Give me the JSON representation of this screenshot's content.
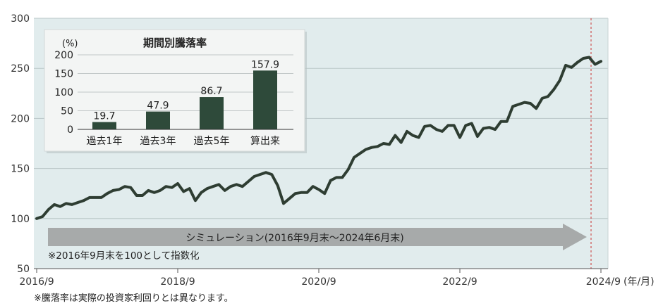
{
  "chart_data": [
    {
      "type": "line",
      "x_tick_labels": [
        "2016/9",
        "2018/9",
        "2020/9",
        "2022/9",
        "2024/9"
      ],
      "x_unit_label": "(年/月)",
      "y_tick_labels": [
        "300",
        "250",
        "200",
        "150",
        "100",
        "50"
      ],
      "ylim": [
        50,
        300
      ],
      "grid": true,
      "colors": {
        "line": "#2e3d32",
        "plot_bg": "#e1eced",
        "arrow": "#a7aaaa",
        "marker_line": "#cc3333"
      },
      "arrow_label": "シミュレーション(2016年9月末〜2024年6月末)",
      "note_in_chart": "※2016年9月末を100として指数化",
      "footnote": "※騰落率は実際の投資家利回りとは異なります。",
      "series": [
        {
          "values": [
            100,
            102,
            109,
            114,
            112,
            115,
            114,
            116,
            118,
            121,
            121,
            121,
            125,
            128,
            129,
            132,
            131,
            123,
            123,
            128,
            126,
            128,
            132,
            131,
            135,
            127,
            130,
            118,
            126,
            130,
            132,
            134,
            128,
            132,
            134,
            132,
            137,
            142,
            144,
            146,
            144,
            133,
            115,
            120,
            125,
            126,
            126,
            132,
            129,
            125,
            138,
            141,
            141,
            149,
            161,
            165,
            169,
            171,
            172,
            175,
            174,
            183,
            176,
            187,
            183,
            181,
            192,
            193,
            189,
            187,
            193,
            193,
            181,
            193,
            195,
            182,
            190,
            191,
            189,
            197,
            197,
            212,
            214,
            216,
            215,
            210,
            220,
            222,
            229,
            238,
            253,
            251,
            256,
            260,
            261,
            254,
            257
          ]
        }
      ]
    },
    {
      "type": "bar",
      "title": "期間別騰落率",
      "ylabel": "(%)",
      "ylim": [
        0,
        200
      ],
      "y_tick_labels": [
        "200",
        "150",
        "100",
        "50",
        "0"
      ],
      "categories": [
        "過去1年",
        "過去3年",
        "過去5年",
        "算出来"
      ],
      "values": [
        19.7,
        47.9,
        86.7,
        157.9
      ],
      "value_labels": [
        "19.7",
        "47.9",
        "86.7",
        "157.9"
      ],
      "colors": {
        "bar": "#2e4a3a",
        "panel_bg": "#f3f5f4"
      }
    }
  ]
}
